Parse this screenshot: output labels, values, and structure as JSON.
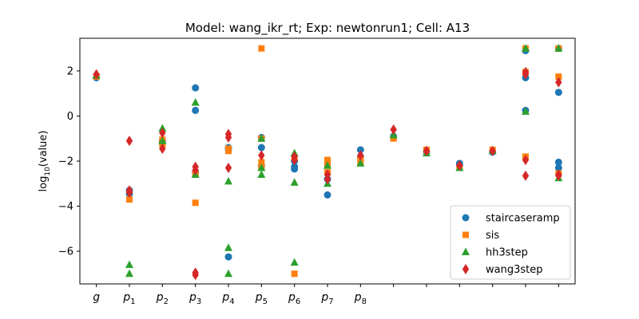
{
  "chart_data": {
    "type": "scatter",
    "title": "Model: wang_ikr_rt; Exp: newtonrun1; Cell: A13",
    "xlabel": "",
    "ylabel": "log10(value)",
    "ylim": [
      -7.45,
      3.45
    ],
    "xlim": [
      -0.5,
      14.5
    ],
    "yticks": [
      -6,
      -4,
      -2,
      0,
      2
    ],
    "ytick_labels": [
      "−6",
      "−4",
      "−2",
      "0",
      "2"
    ],
    "xticks": [
      {
        "base": "g",
        "sub": ""
      },
      {
        "base": "p",
        "sub": "1"
      },
      {
        "base": "p",
        "sub": "2"
      },
      {
        "base": "p",
        "sub": "3"
      },
      {
        "base": "p",
        "sub": "4"
      },
      {
        "base": "p",
        "sub": "5"
      },
      {
        "base": "p",
        "sub": "6"
      },
      {
        "base": "p",
        "sub": "7"
      },
      {
        "base": "p",
        "sub": "8"
      },
      {
        "base": "",
        "sub": ""
      },
      {
        "base": "",
        "sub": ""
      },
      {
        "base": "",
        "sub": ""
      },
      {
        "base": "",
        "sub": ""
      },
      {
        "base": "",
        "sub": ""
      },
      {
        "base": "",
        "sub": ""
      }
    ],
    "legend_position": "lower-right",
    "series": [
      {
        "name": "staircaseramp",
        "marker": "circle",
        "color": "#1f77b4",
        "points": [
          [
            0,
            1.7
          ],
          [
            1,
            -3.3
          ],
          [
            1,
            -3.45
          ],
          [
            2,
            -1.1
          ],
          [
            2,
            -1.2
          ],
          [
            3,
            1.25
          ],
          [
            3,
            0.25
          ],
          [
            3,
            -2.5
          ],
          [
            4,
            -1.4
          ],
          [
            4,
            -1.5
          ],
          [
            4,
            -6.25
          ],
          [
            5,
            -0.95
          ],
          [
            5,
            -1.4
          ],
          [
            5,
            -2.2
          ],
          [
            6,
            -2.25
          ],
          [
            6,
            -2.35
          ],
          [
            6,
            -2.0
          ],
          [
            7,
            -2.8
          ],
          [
            7,
            -3.5
          ],
          [
            8,
            -1.5
          ],
          [
            8,
            -1.8
          ],
          [
            9,
            -0.9
          ],
          [
            10,
            -1.6
          ],
          [
            11,
            -2.1
          ],
          [
            11,
            -2.2
          ],
          [
            12,
            -1.6
          ],
          [
            13,
            2.9
          ],
          [
            13,
            1.7
          ],
          [
            13,
            0.25
          ],
          [
            14,
            3.0
          ],
          [
            14,
            1.05
          ],
          [
            14,
            -2.05
          ],
          [
            14,
            -2.3
          ]
        ]
      },
      {
        "name": "sis",
        "marker": "square",
        "color": "#ff7f0e",
        "points": [
          [
            0,
            1.75
          ],
          [
            1,
            -3.7
          ],
          [
            2,
            -1.05
          ],
          [
            2,
            -1.25
          ],
          [
            3,
            -3.85
          ],
          [
            3,
            -2.55
          ],
          [
            4,
            -1.45
          ],
          [
            4,
            -1.55
          ],
          [
            5,
            3.0
          ],
          [
            5,
            -1.0
          ],
          [
            5,
            -2.05
          ],
          [
            5,
            -2.25
          ],
          [
            6,
            -7.0
          ],
          [
            6,
            -1.85
          ],
          [
            7,
            -1.95
          ],
          [
            7,
            -2.2
          ],
          [
            7,
            -2.5
          ],
          [
            8,
            -1.9
          ],
          [
            8,
            -2.05
          ],
          [
            9,
            -1.0
          ],
          [
            10,
            -1.5
          ],
          [
            11,
            -2.3
          ],
          [
            12,
            -1.5
          ],
          [
            13,
            3.0
          ],
          [
            13,
            1.95
          ],
          [
            13,
            -1.8
          ],
          [
            14,
            3.0
          ],
          [
            14,
            1.75
          ],
          [
            14,
            -2.55
          ]
        ]
      },
      {
        "name": "hh3step",
        "marker": "triangle",
        "color": "#2ca02c",
        "points": [
          [
            0,
            1.8
          ],
          [
            1,
            -6.6
          ],
          [
            1,
            -7.0
          ],
          [
            2,
            -0.55
          ],
          [
            2,
            -1.1
          ],
          [
            3,
            0.6
          ],
          [
            3,
            -2.6
          ],
          [
            4,
            -5.85
          ],
          [
            4,
            -2.9
          ],
          [
            4,
            -7.0
          ],
          [
            5,
            -2.3
          ],
          [
            5,
            -2.6
          ],
          [
            5,
            -1.0
          ],
          [
            6,
            -1.65
          ],
          [
            6,
            -2.95
          ],
          [
            6,
            -6.5
          ],
          [
            7,
            -2.2
          ],
          [
            7,
            -3.0
          ],
          [
            8,
            -2.1
          ],
          [
            9,
            -0.85
          ],
          [
            10,
            -1.65
          ],
          [
            11,
            -2.3
          ],
          [
            12,
            -1.55
          ],
          [
            13,
            3.0
          ],
          [
            13,
            0.2
          ],
          [
            14,
            3.0
          ],
          [
            14,
            -2.75
          ]
        ]
      },
      {
        "name": "wang3step",
        "marker": "diamond",
        "color": "#d62728",
        "points": [
          [
            0,
            1.85
          ],
          [
            1,
            -1.1
          ],
          [
            1,
            -3.3
          ],
          [
            1,
            -3.4
          ],
          [
            2,
            -0.75
          ],
          [
            2,
            -1.45
          ],
          [
            3,
            -2.25
          ],
          [
            3,
            -2.4
          ],
          [
            3,
            -6.95
          ],
          [
            3,
            -7.05
          ],
          [
            4,
            -0.8
          ],
          [
            4,
            -0.95
          ],
          [
            4,
            -2.3
          ],
          [
            5,
            -1.75
          ],
          [
            6,
            -1.8
          ],
          [
            6,
            -1.95
          ],
          [
            7,
            -2.6
          ],
          [
            7,
            -2.8
          ],
          [
            8,
            -1.75
          ],
          [
            9,
            -0.6
          ],
          [
            10,
            -1.55
          ],
          [
            11,
            -2.2
          ],
          [
            12,
            -1.55
          ],
          [
            13,
            1.95
          ],
          [
            13,
            1.85
          ],
          [
            13,
            -1.95
          ],
          [
            13,
            -2.65
          ],
          [
            14,
            1.5
          ],
          [
            14,
            -2.6
          ],
          [
            14,
            -2.65
          ]
        ]
      }
    ]
  }
}
